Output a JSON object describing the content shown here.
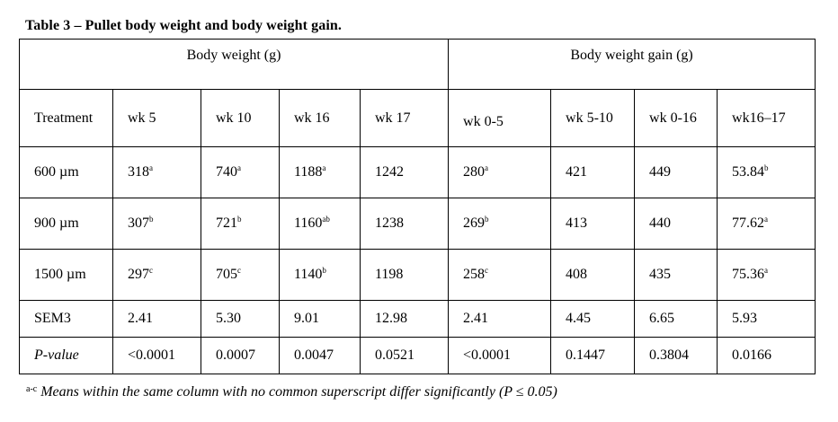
{
  "caption": "Table 3 – Pullet body weight and body weight gain.",
  "groups": {
    "body_weight": "Body weight (g)",
    "body_weight_gain": "Body weight gain (g)"
  },
  "columns": [
    "Treatment",
    "wk 5",
    "wk 10",
    "wk 16",
    "wk 17",
    "wk 0-5",
    "wk 5-10",
    "wk 0-16",
    "wk16–17"
  ],
  "rows": [
    {
      "treatment": "600 µm",
      "cells": [
        {
          "v": "318",
          "s": "a"
        },
        {
          "v": "740",
          "s": "a"
        },
        {
          "v": "1188",
          "s": "a"
        },
        {
          "v": "1242",
          "s": ""
        },
        {
          "v": "280",
          "s": "a"
        },
        {
          "v": "421",
          "s": ""
        },
        {
          "v": "449",
          "s": ""
        },
        {
          "v": "53.84",
          "s": "b"
        }
      ]
    },
    {
      "treatment": "900 µm",
      "cells": [
        {
          "v": "307",
          "s": "b"
        },
        {
          "v": "721",
          "s": "b"
        },
        {
          "v": "1160",
          "s": "ab"
        },
        {
          "v": "1238",
          "s": ""
        },
        {
          "v": "269",
          "s": "b"
        },
        {
          "v": "413",
          "s": ""
        },
        {
          "v": "440",
          "s": ""
        },
        {
          "v": "77.62",
          "s": "a"
        }
      ]
    },
    {
      "treatment": "1500 µm",
      "cells": [
        {
          "v": "297",
          "s": "c"
        },
        {
          "v": "705",
          "s": "c"
        },
        {
          "v": "1140",
          "s": "b"
        },
        {
          "v": "1198",
          "s": ""
        },
        {
          "v": "258",
          "s": "c"
        },
        {
          "v": "408",
          "s": ""
        },
        {
          "v": "435",
          "s": ""
        },
        {
          "v": "75.36",
          "s": "a"
        }
      ]
    }
  ],
  "sem": {
    "label": "SEM3",
    "values": [
      "2.41",
      "5.30",
      "9.01",
      "12.98",
      "2.41",
      "4.45",
      "6.65",
      "5.93"
    ]
  },
  "pvalue": {
    "label": "P-value",
    "values": [
      "<0.0001",
      "0.0007",
      "0.0047",
      "0.0521",
      "<0.0001",
      "0.1447",
      "0.3804",
      "0.0166"
    ]
  },
  "footnote": {
    "superscript": "a-c",
    "text": " Means within the same column with no common superscript differ significantly (P ≤ 0.05)"
  }
}
